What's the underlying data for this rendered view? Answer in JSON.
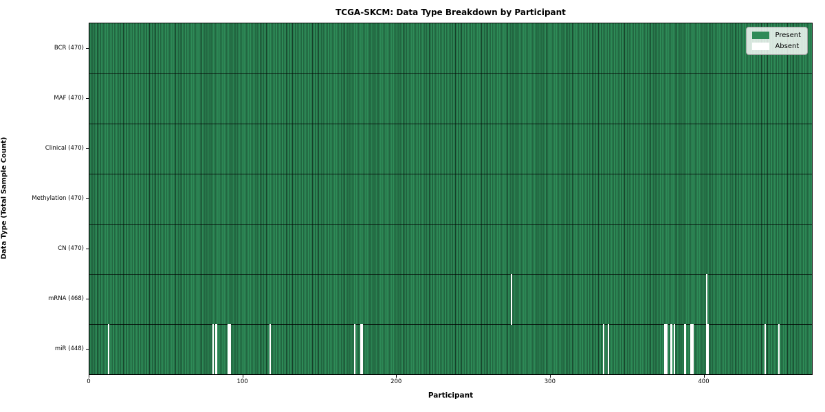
{
  "chart_data": {
    "type": "heatmap",
    "title": "TCGA-SKCM: Data Type Breakdown by Participant",
    "xlabel": "Participant",
    "ylabel": "Data Type (Total Sample Count)",
    "n_participants": 470,
    "x_ticks": [
      0,
      100,
      200,
      300,
      400
    ],
    "legend": [
      {
        "label": "Present",
        "color": "#2e8b57"
      },
      {
        "label": "Absent",
        "color": "#ffffff"
      }
    ],
    "legend_position": "upper right",
    "colors": {
      "present": "#2e8b57",
      "bar_edge": "#143f28",
      "absent": "#ffffff",
      "row_divider": "#1a1a1a"
    },
    "rows": [
      {
        "label": "BCR (470)",
        "data_type": "BCR",
        "total": 470,
        "absent_participants": []
      },
      {
        "label": "MAF (470)",
        "data_type": "MAF",
        "total": 470,
        "absent_participants": []
      },
      {
        "label": "Clinical (470)",
        "data_type": "Clinical",
        "total": 470,
        "absent_participants": []
      },
      {
        "label": "Methylation (470)",
        "data_type": "Methylation",
        "total": 470,
        "absent_participants": []
      },
      {
        "label": "CN (470)",
        "data_type": "CN",
        "total": 470,
        "absent_participants": []
      },
      {
        "label": "mRNA (468)",
        "data_type": "mRNA",
        "total": 468,
        "absent_participants": [
          274,
          401
        ]
      },
      {
        "label": "miR (448)",
        "data_type": "miR",
        "total": 448,
        "absent_participants": [
          12,
          80,
          82,
          90,
          91,
          117,
          172,
          176,
          177,
          334,
          337,
          374,
          375,
          378,
          380,
          387,
          391,
          392,
          401,
          402,
          439,
          448
        ]
      }
    ]
  }
}
